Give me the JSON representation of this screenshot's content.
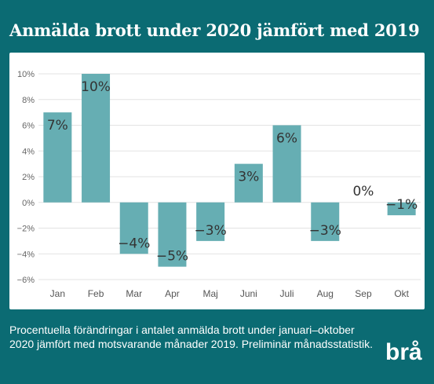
{
  "header": {
    "title": "Anmälda brott under 2020 jämfört med 2019"
  },
  "footer": {
    "description": "Procentuella förändringar i antalet anmälda brott under januari–oktober 2020 jämfört med motsvarande månader 2019. Preliminär månadsstatistik."
  },
  "logo": {
    "text": "brå"
  },
  "colors": {
    "background": "#0b6b73",
    "bar": "#66aeb3",
    "grid": "#e3e3e3"
  },
  "chart_data": {
    "type": "bar",
    "title": "Anmälda brott under 2020 jämfört med 2019",
    "xlabel": "",
    "ylabel": "",
    "categories": [
      "Jan",
      "Feb",
      "Mar",
      "Apr",
      "Maj",
      "Juni",
      "Juli",
      "Aug",
      "Sep",
      "Okt"
    ],
    "values": [
      7,
      10,
      -4,
      -5,
      -3,
      3,
      6,
      -3,
      0,
      -1
    ],
    "data_labels": [
      "7%",
      "10%",
      "−4%",
      "−5%",
      "−3%",
      "3%",
      "6%",
      "−3%",
      "0%",
      "−1%"
    ],
    "ylim": [
      -6,
      10
    ],
    "yticks": [
      10,
      8,
      6,
      4,
      2,
      0,
      -2,
      -4,
      -6
    ],
    "ytick_labels": [
      "10%",
      "8%",
      "6%",
      "4%",
      "2%",
      "0%",
      "−2%",
      "−4%",
      "−6%"
    ],
    "grid": true,
    "legend": "none"
  }
}
